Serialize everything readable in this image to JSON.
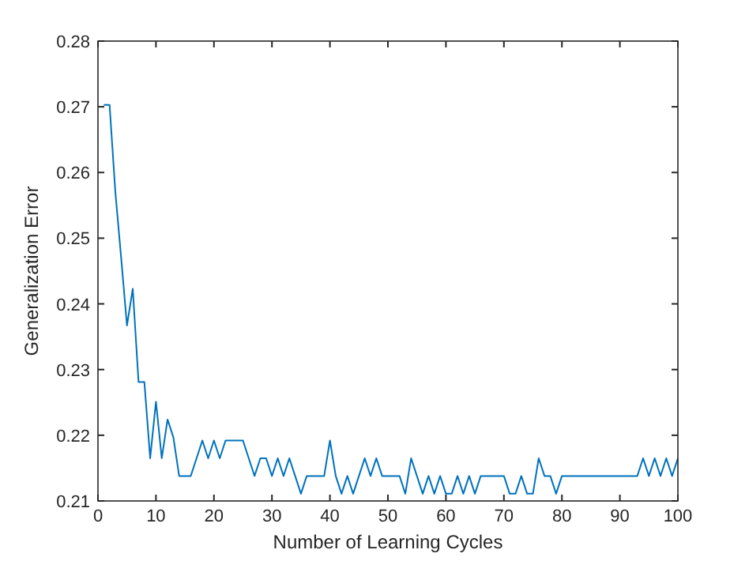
{
  "chart_data": {
    "type": "line",
    "xlabel": "Number of Learning Cycles",
    "ylabel": "Generalization Error",
    "x": [
      1,
      2,
      3,
      4,
      5,
      6,
      7,
      8,
      9,
      10,
      11,
      12,
      13,
      14,
      15,
      16,
      17,
      18,
      19,
      20,
      21,
      22,
      23,
      24,
      25,
      26,
      27,
      28,
      29,
      30,
      31,
      32,
      33,
      34,
      35,
      36,
      37,
      38,
      39,
      40,
      41,
      42,
      43,
      44,
      45,
      46,
      47,
      48,
      49,
      50,
      51,
      52,
      53,
      54,
      55,
      56,
      57,
      58,
      59,
      60,
      61,
      62,
      63,
      64,
      65,
      66,
      67,
      68,
      69,
      70,
      71,
      72,
      73,
      74,
      75,
      76,
      77,
      78,
      79,
      80,
      81,
      82,
      83,
      84,
      85,
      86,
      87,
      88,
      89,
      90,
      91,
      92,
      93,
      94,
      95,
      96,
      97,
      98,
      99,
      100
    ],
    "series": [
      {
        "color": "#0072bd",
        "values": [
          0.2703,
          0.2703,
          0.257,
          0.247,
          0.2367,
          0.2423,
          0.2281,
          0.2281,
          0.2165,
          0.2251,
          0.2165,
          0.2224,
          0.2197,
          0.2138,
          0.2138,
          0.2138,
          0.2165,
          0.2192,
          0.2165,
          0.2192,
          0.2165,
          0.2192,
          0.2192,
          0.2192,
          0.2192,
          0.2165,
          0.2138,
          0.2165,
          0.2165,
          0.2138,
          0.2165,
          0.2138,
          0.2165,
          0.2138,
          0.2111,
          0.2138,
          0.2138,
          0.2138,
          0.2138,
          0.2192,
          0.2138,
          0.2111,
          0.2138,
          0.2111,
          0.2138,
          0.2165,
          0.2138,
          0.2165,
          0.2138,
          0.2138,
          0.2138,
          0.2138,
          0.2111,
          0.2165,
          0.2138,
          0.2111,
          0.2138,
          0.2111,
          0.2138,
          0.2111,
          0.2111,
          0.2138,
          0.2111,
          0.2138,
          0.2111,
          0.2138,
          0.2138,
          0.2138,
          0.2138,
          0.2138,
          0.2111,
          0.2111,
          0.2138,
          0.2111,
          0.2111,
          0.2165,
          0.2138,
          0.2138,
          0.2111,
          0.2138,
          0.2138,
          0.2138,
          0.2138,
          0.2138,
          0.2138,
          0.2138,
          0.2138,
          0.2138,
          0.2138,
          0.2138,
          0.2138,
          0.2138,
          0.2138,
          0.2165,
          0.2138,
          0.2165,
          0.2138,
          0.2165,
          0.2138,
          0.2165
        ]
      }
    ],
    "xlim": [
      0,
      100
    ],
    "xticks": [
      0,
      10,
      20,
      30,
      40,
      50,
      60,
      70,
      80,
      90,
      100
    ],
    "ylim": [
      0.21,
      0.28
    ],
    "yticks": [
      0.21,
      0.22,
      0.23,
      0.24,
      0.25,
      0.26,
      0.27,
      0.28
    ],
    "marker": "none",
    "line_style": "solid"
  }
}
